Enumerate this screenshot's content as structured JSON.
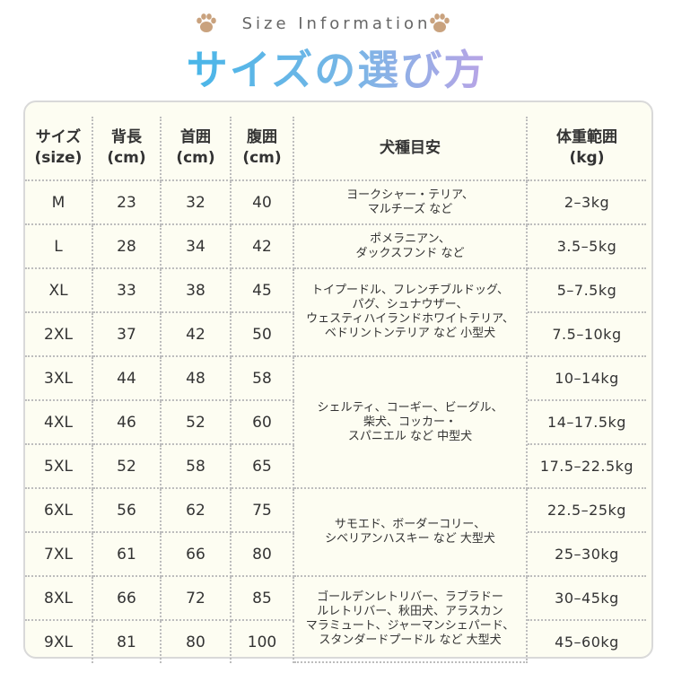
{
  "header": {
    "subtitle": "Size Information",
    "title": "サイズの選び方",
    "paw_color": "#c9a27e"
  },
  "colors": {
    "title_gradient": [
      "#48b6e8",
      "#b9a4e6"
    ],
    "panel_bg": "#fdfdf2",
    "divider": "#bdbdbd"
  },
  "table": {
    "headers": {
      "size": [
        "サイズ",
        "(size)"
      ],
      "back": [
        "背長",
        "(cm)"
      ],
      "neck": [
        "首囲",
        "(cm)"
      ],
      "waist": [
        "腹囲",
        "(cm)"
      ],
      "breed": "犬種目安",
      "weight": [
        "体重範囲",
        "(kg)"
      ]
    },
    "rows": [
      {
        "size": "M",
        "back": "23",
        "neck": "32",
        "waist": "40",
        "weight": "2–3kg"
      },
      {
        "size": "L",
        "back": "28",
        "neck": "34",
        "waist": "42",
        "weight": "3.5–5kg"
      },
      {
        "size": "XL",
        "back": "33",
        "neck": "38",
        "waist": "45",
        "weight": "5–7.5kg"
      },
      {
        "size": "2XL",
        "back": "37",
        "neck": "42",
        "waist": "50",
        "weight": "7.5–10kg"
      },
      {
        "size": "3XL",
        "back": "44",
        "neck": "48",
        "waist": "58",
        "weight": "10–14kg"
      },
      {
        "size": "4XL",
        "back": "46",
        "neck": "52",
        "waist": "60",
        "weight": "14–17.5kg"
      },
      {
        "size": "5XL",
        "back": "52",
        "neck": "58",
        "waist": "65",
        "weight": "17.5–22.5kg"
      },
      {
        "size": "6XL",
        "back": "56",
        "neck": "62",
        "waist": "75",
        "weight": "22.5–25kg"
      },
      {
        "size": "7XL",
        "back": "61",
        "neck": "66",
        "waist": "80",
        "weight": "25–30kg"
      },
      {
        "size": "8XL",
        "back": "66",
        "neck": "72",
        "waist": "85",
        "weight": "30–45kg"
      },
      {
        "size": "9XL",
        "back": "81",
        "neck": "80",
        "waist": "100",
        "weight": "45–60kg"
      }
    ],
    "breeds": [
      {
        "lines": [
          "ヨークシャー・テリア、",
          "マルチーズ など"
        ]
      },
      {
        "lines": [
          "ポメラニアン、",
          "ダックスフンド など"
        ]
      },
      {
        "lines": [
          "トイプードル、フレンチブルドッグ、",
          "パグ、シュナウザー、",
          "ウェスティハイランドホワイトテリア、",
          "ベドリントンテリア など 小型犬"
        ]
      },
      {
        "lines": [
          "シェルティ、コーギー、ビーグル、",
          "柴犬、コッカー・",
          "スパニエル など 中型犬"
        ]
      },
      {
        "lines": [
          "サモエド、ボーダーコリー、",
          "シベリアンハスキー など 大型犬"
        ]
      },
      {
        "lines": [
          "ゴールデンレトリバー、ラブラドー",
          "ルレトリバー、秋田犬、アラスカン",
          "マラミュート、ジャーマンシェパード、",
          "スタンダードプードル など 大型犬"
        ]
      }
    ]
  }
}
